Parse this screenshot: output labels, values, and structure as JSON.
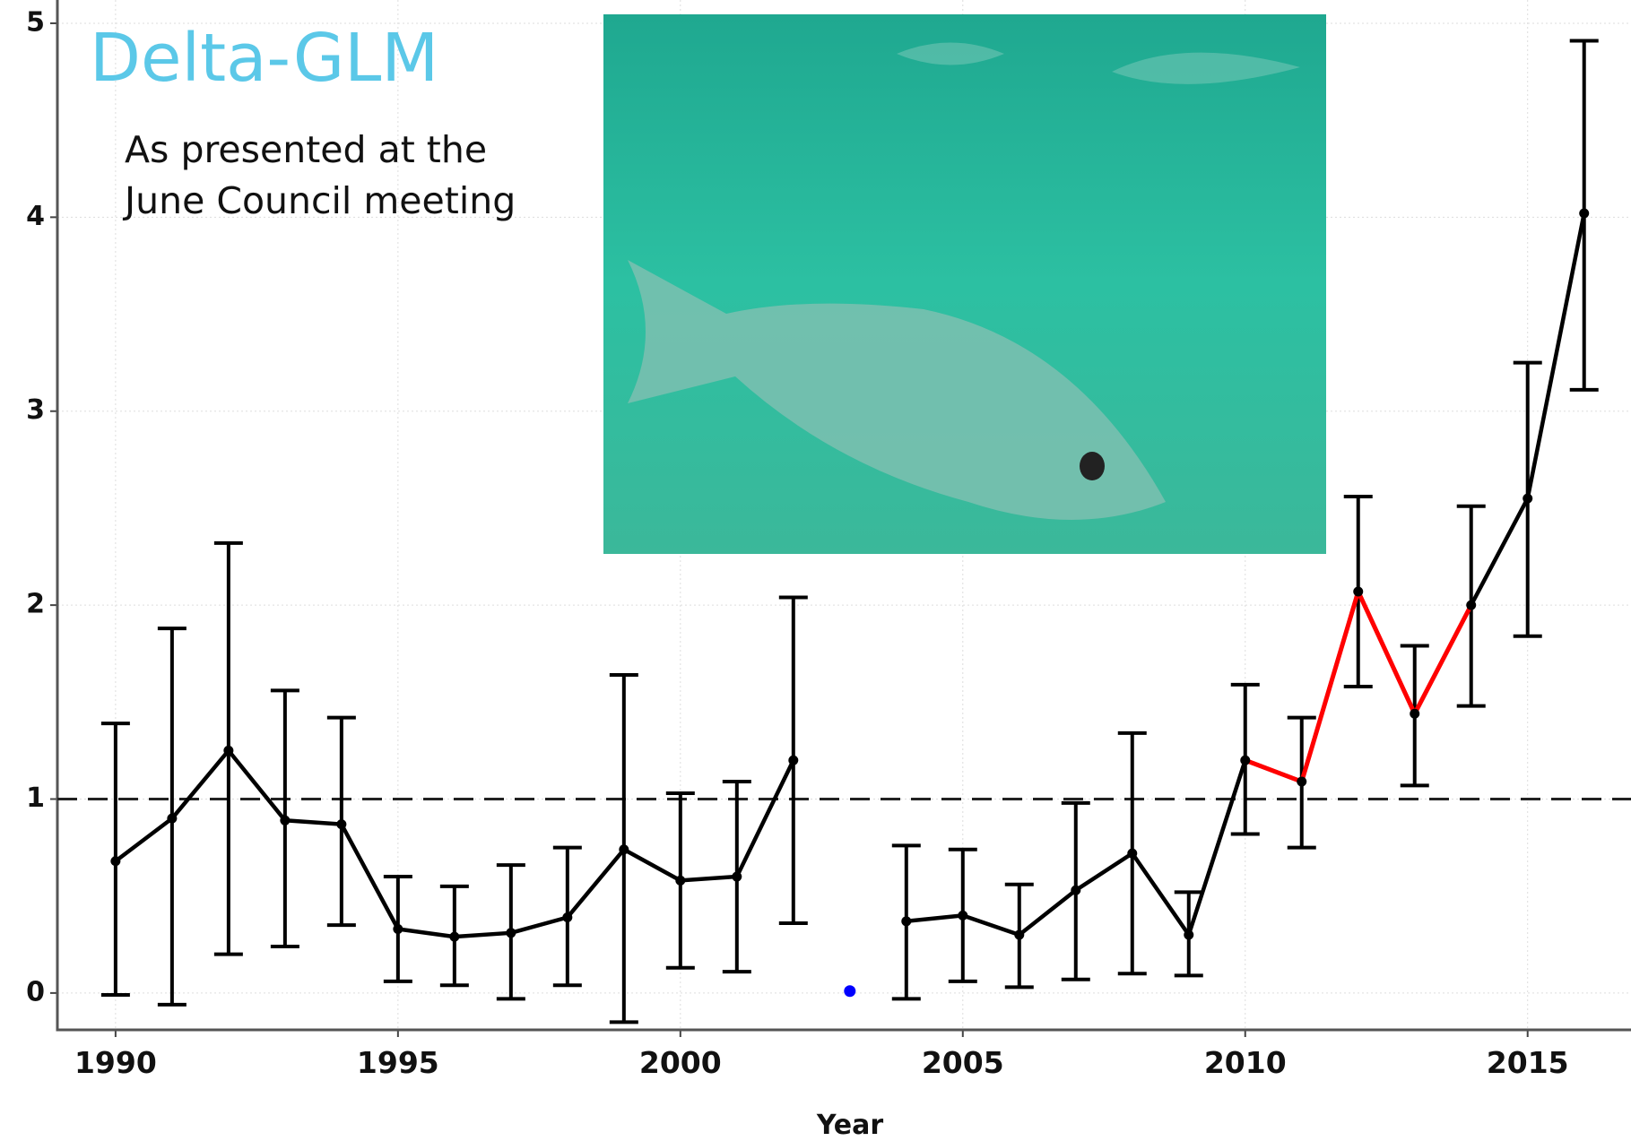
{
  "chart_data": {
    "type": "line",
    "title": "Delta-GLM",
    "subtitle": [
      "As presented at the",
      "June Council meeting"
    ],
    "x_label": "Year",
    "x": [
      1990,
      1991,
      1992,
      1993,
      1994,
      1995,
      1996,
      1997,
      1998,
      1999,
      2000,
      2001,
      2002,
      2003,
      2004,
      2005,
      2006,
      2007,
      2008,
      2009,
      2010,
      2011,
      2012,
      2013,
      2014,
      2015,
      2016
    ],
    "series": [
      {
        "color": "#000000",
        "values": [
          0.68,
          0.9,
          1.25,
          0.89,
          0.87,
          0.33,
          0.29,
          0.31,
          0.39,
          0.74,
          0.58,
          0.6,
          1.2,
          null,
          0.37,
          0.4,
          0.3,
          0.53,
          0.72,
          0.3,
          1.2,
          1.09,
          2.07,
          1.44,
          2.0,
          2.55,
          4.02
        ],
        "lower": [
          -0.01,
          -0.06,
          0.2,
          0.24,
          0.35,
          0.06,
          0.04,
          -0.03,
          0.04,
          -0.15,
          0.13,
          0.11,
          0.36,
          null,
          -0.03,
          0.06,
          0.03,
          0.07,
          0.1,
          0.09,
          0.82,
          0.75,
          1.58,
          1.07,
          1.48,
          1.84,
          3.11
        ],
        "upper": [
          1.39,
          1.88,
          2.32,
          1.56,
          1.42,
          0.6,
          0.55,
          0.66,
          0.75,
          1.64,
          1.03,
          1.09,
          2.04,
          null,
          0.76,
          0.74,
          0.56,
          0.98,
          1.34,
          0.52,
          1.59,
          1.42,
          2.56,
          1.79,
          2.51,
          3.25,
          4.91
        ]
      }
    ],
    "highlight_range": [
      2010,
      2014
    ],
    "highlight_color": "#ff0000",
    "extra_points": [
      {
        "x": 2003,
        "value": 0.01,
        "color": "#0000ff"
      }
    ],
    "reference_line": 1,
    "xlim": [
      1988.97,
      2016.83
    ],
    "ylim": [
      -0.19,
      5.12
    ],
    "xticks": [
      1990,
      1995,
      2000,
      2005,
      2010,
      2015
    ],
    "yticks": [
      0,
      1,
      2,
      3,
      4,
      5
    ],
    "grid": true
  }
}
